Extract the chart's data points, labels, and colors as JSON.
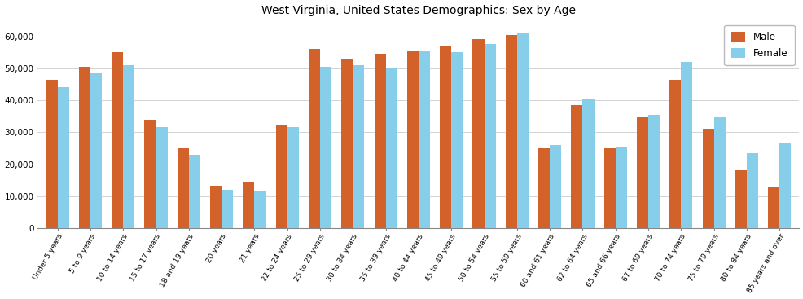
{
  "title": "West Virginia, United States Demographics: Sex by Age",
  "categories": [
    "Under 5 years",
    "5 to 9 years",
    "10 to 14 years",
    "15 to 17 years",
    "18 and 19 years",
    "20 years",
    "21 years",
    "22 to 24 years",
    "25 to 29 years",
    "30 to 34 years",
    "35 to 39 years",
    "40 to 44 years",
    "45 to 49 years",
    "50 to 54 years",
    "55 to 59 years",
    "60 and 61 years",
    "62 to 64 years",
    "65 and 66 years",
    "67 to 69 years",
    "70 to 74 years",
    "75 to 79 years",
    "80 to 84 years",
    "85 years and over"
  ],
  "male": [
    46500,
    50500,
    55000,
    34000,
    25000,
    13200,
    14200,
    32500,
    56000,
    53000,
    54500,
    55500,
    57000,
    59000,
    60500,
    25000,
    38500,
    25000,
    35000,
    46500,
    31000,
    18000,
    13000
  ],
  "female": [
    44000,
    48500,
    51000,
    31500,
    23000,
    12000,
    11500,
    31500,
    50500,
    51000,
    50000,
    55500,
    55000,
    57500,
    61000,
    26000,
    40500,
    25500,
    35500,
    52000,
    35000,
    23500,
    26500
  ],
  "male_color": "#d2622a",
  "female_color": "#87ceeb",
  "background_color": "#ffffff",
  "plot_bg_color": "#ffffff",
  "ylim": [
    0,
    65000
  ],
  "yticks": [
    0,
    10000,
    20000,
    30000,
    40000,
    50000,
    60000
  ],
  "title_fontsize": 10,
  "bar_width": 0.35,
  "tick_fontsize": 6.5,
  "ytick_fontsize": 7.5
}
